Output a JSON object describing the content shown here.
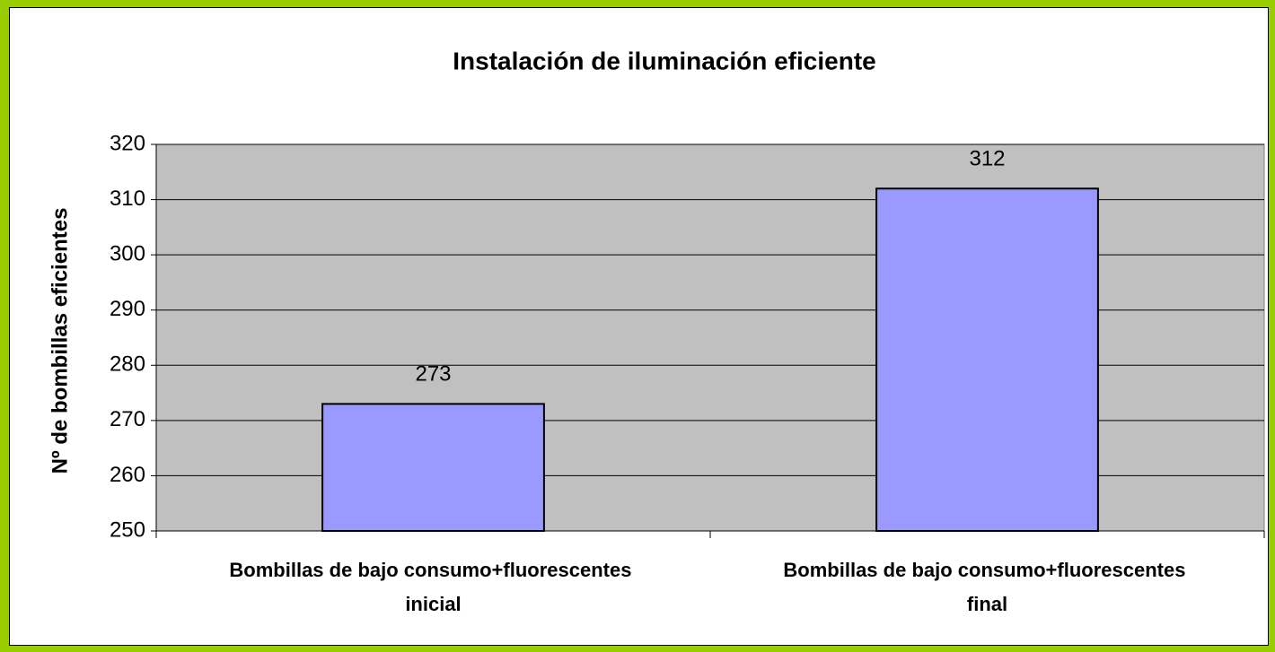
{
  "chart_data": {
    "type": "bar",
    "title": "Instalación de iluminación eficiente",
    "ylabel": "Nº de bombillas eficientes",
    "categories": [
      "Bombillas de bajo consumo+fluorescentes inicial",
      "Bombillas de bajo consumo+fluorescentes final"
    ],
    "values": [
      273,
      312
    ],
    "color": "#9999ff",
    "ylim": [
      250,
      320
    ],
    "yticks": [
      250,
      260,
      270,
      280,
      290,
      300,
      310,
      320
    ],
    "grid": true
  }
}
